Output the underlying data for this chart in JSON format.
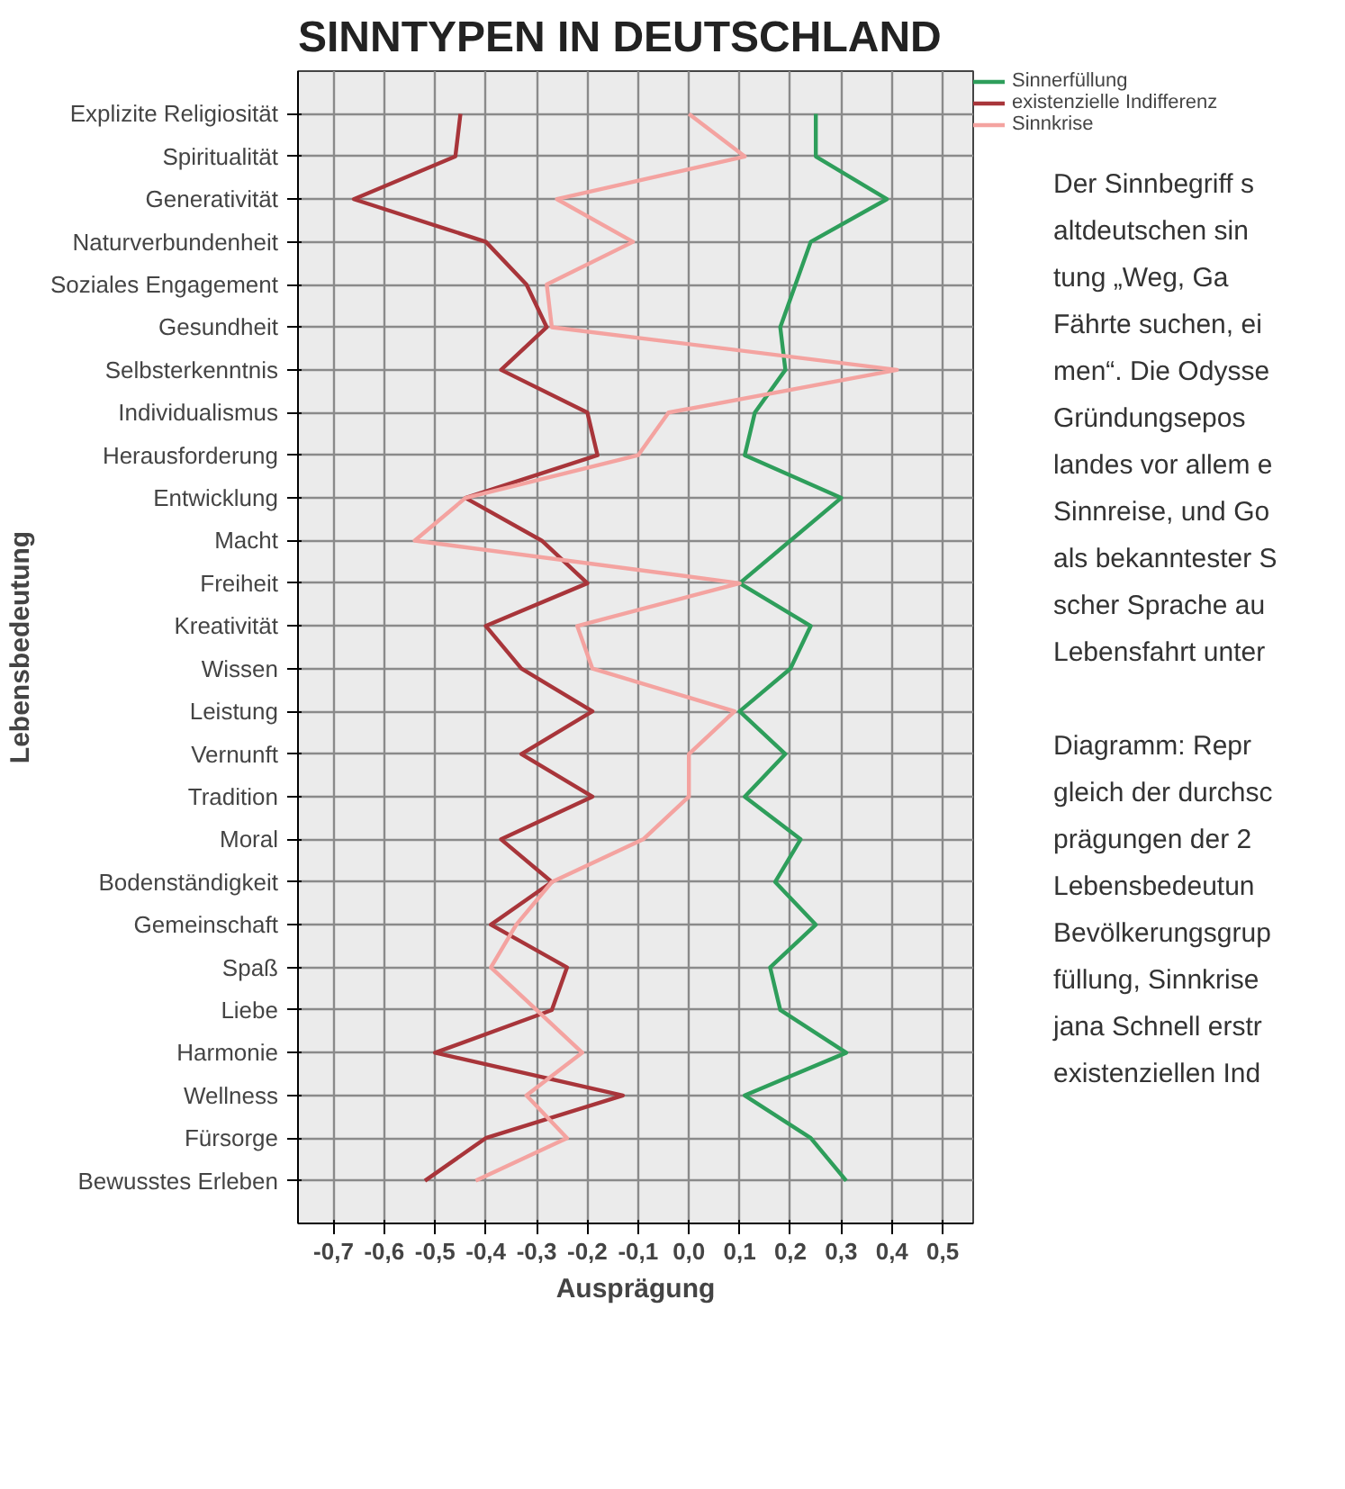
{
  "chart_data": {
    "type": "line",
    "orientation": "horizontal",
    "title": "SINNTYPEN IN DEUTSCHLAND",
    "xlabel": "Ausprägung",
    "ylabel": "Lebensbedeutung",
    "categories": [
      "Explizite Religiosität",
      "Spiritualität",
      "Generativität",
      "Naturverbundenheit",
      "Soziales Engagement",
      "Gesundheit",
      "Selbsterkenntnis",
      "Individualismus",
      "Herausforderung",
      "Entwicklung",
      "Macht",
      "Freiheit",
      "Kreativität",
      "Wissen",
      "Leistung",
      "Vernunft",
      "Tradition",
      "Moral",
      "Bodenständigkeit",
      "Gemeinschaft",
      "Spaß",
      "Liebe",
      "Harmonie",
      "Wellness",
      "Fürsorge",
      "Bewusstes Erleben"
    ],
    "series": [
      {
        "name": "Sinnerfüllung",
        "color": "#2e9e5b",
        "values": [
          0.25,
          0.25,
          0.39,
          0.24,
          0.21,
          0.18,
          0.19,
          0.13,
          0.11,
          0.3,
          0.2,
          0.1,
          0.24,
          0.2,
          0.1,
          0.19,
          0.11,
          0.22,
          0.17,
          0.25,
          0.16,
          0.18,
          0.31,
          0.11,
          0.24,
          0.31
        ]
      },
      {
        "name": "existenzielle Indifferenz",
        "color": "#a8353a",
        "values": [
          -0.45,
          -0.46,
          -0.66,
          -0.4,
          -0.32,
          -0.28,
          -0.37,
          -0.2,
          -0.18,
          -0.44,
          -0.29,
          -0.2,
          -0.4,
          -0.33,
          -0.19,
          -0.33,
          -0.19,
          -0.37,
          -0.27,
          -0.39,
          -0.24,
          -0.27,
          -0.5,
          -0.13,
          -0.4,
          -0.52
        ]
      },
      {
        "name": "Sinnkrise",
        "color": "#f4a3a0",
        "values": [
          0.0,
          0.11,
          -0.26,
          -0.11,
          -0.28,
          -0.27,
          0.41,
          -0.04,
          -0.1,
          -0.44,
          -0.54,
          0.1,
          -0.22,
          -0.19,
          0.09,
          0.0,
          0.0,
          -0.09,
          -0.27,
          -0.34,
          -0.39,
          -0.3,
          -0.21,
          -0.32,
          -0.24,
          -0.42
        ]
      }
    ],
    "xlim": [
      -0.77,
      0.56
    ],
    "xticks": [
      {
        "value": -0.7,
        "label": "-0,7"
      },
      {
        "value": -0.6,
        "label": "-0,6"
      },
      {
        "value": -0.5,
        "label": "-0,5"
      },
      {
        "value": -0.4,
        "label": "-0,4"
      },
      {
        "value": -0.3,
        "label": "-0,3"
      },
      {
        "value": -0.2,
        "label": "-0,2"
      },
      {
        "value": -0.1,
        "label": "-0,1"
      },
      {
        "value": 0.0,
        "label": "0,0"
      },
      {
        "value": 0.1,
        "label": "0,1"
      },
      {
        "value": 0.2,
        "label": "0,2"
      },
      {
        "value": 0.3,
        "label": "0,3"
      },
      {
        "value": 0.4,
        "label": "0,4"
      },
      {
        "value": 0.5,
        "label": "0,5"
      }
    ],
    "grid": true,
    "legend": "top right",
    "marker": "none",
    "line_style": "solid",
    "annotations": [
      "Der Sinnbegriff s\naltdeutschen sin\ntung „Weg, Ga\nFährte suchen, ei\nmen“. Die Odysse\nGründungsepos\nlandes vor allem e\nSinnreise, und Go\nals bekanntester S\nscher Sprache au\nLebensfahrt unter",
      "Diagramm: Repr\ngleich der durchsc\nprägungen der 2\nLebensbedeutun\nBevölkerungsgrup\nfüllung, Sinnkrise\njana Schnell erstr\nexistenziellen Ind"
    ]
  }
}
